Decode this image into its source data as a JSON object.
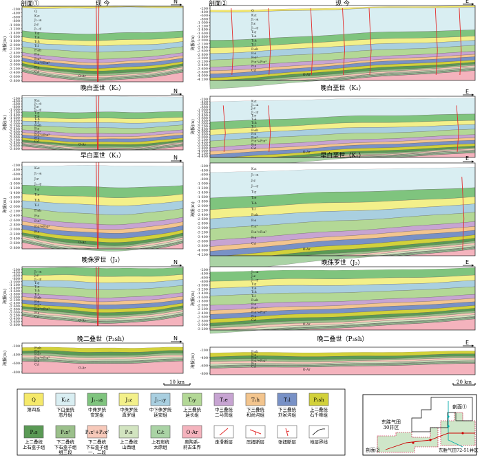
{
  "colors": {
    "Q": "#f5e96a",
    "K1z": "#d9eef2",
    "J23a": "#7fc47e",
    "J2z": "#f3f08a",
    "J12y": "#a9cfe0",
    "T3y": "#b3d896",
    "T2e": "#c7a4d2",
    "T1h": "#f3c58e",
    "T1l": "#7891c6",
    "P3sh": "#d2d13a",
    "P2s": "#5a9a55",
    "P2x3": "#9bc08b",
    "P2x12": "#f7c9ba",
    "P1s": "#d2e4c0",
    "C2t": "#aad3a5",
    "OAr": "#f4b3bd",
    "fault": "#e22b2b"
  },
  "panels_left": [
    {
      "title": "现 今",
      "label1": "剖面①",
      "dir": "N",
      "y_ticks": [
        "-200",
        "-400",
        "-600",
        "-800",
        "-1 000",
        "-1 200",
        "-1 400",
        "-1 600",
        "-1 800",
        "-2 000",
        "-2 200",
        "-2 400",
        "-2 600",
        "-2 800",
        "-3 000",
        "-3 200",
        "-3 400",
        "-3 600",
        "-3 800"
      ],
      "unit_labels": [
        "Q",
        "K₁z",
        "J₂₋₃a",
        "J₂z",
        "J₁₋₂y",
        "T₃y",
        "T₂e",
        "T₁h",
        "T₁l",
        "P₃sh",
        "P₂s",
        "P₂x³",
        "P₂x¹+P₂x²",
        "P₁s",
        "C₂t",
        "O-Ar"
      ]
    },
    {
      "title": "晚白垩世（K₂）",
      "dir": "N",
      "y_ticks": [
        "-200",
        "-400",
        "-600",
        "-800",
        "-1 000",
        "-1 200",
        "-1 400",
        "-1 600",
        "-1 800",
        "-2 000",
        "-2 200",
        "-2 400",
        "-2 600",
        "-2 800",
        "-3 000",
        "-3 200",
        "-3 400",
        "-3 600",
        "-3 800"
      ],
      "unit_labels": [
        "K₁z",
        "J₂₋₃a",
        "J₂z",
        "J₁₋₂y",
        "T₃y",
        "T₂e",
        "T₁h",
        "T₁l",
        "P₃sh",
        "P₂s",
        "P₂x³",
        "P₂x¹+P₂x²",
        "P₁s",
        "C₂t",
        "O-Ar"
      ]
    },
    {
      "title": "早白垩世（K₁）",
      "dir": "N",
      "y_ticks": [
        "-200",
        "-400",
        "-600",
        "-800",
        "-1 000",
        "-1 200",
        "-1 400",
        "-1 600",
        "-1 800",
        "-2 000",
        "-2 200",
        "-2 400",
        "-2 600",
        "-2 800",
        "-3 000",
        "-3 200",
        "-3 400",
        "-3 600",
        "-3 800"
      ],
      "unit_labels": [
        "K₁z",
        "J₂₋₃a",
        "J₂z",
        "J₁₋₂y",
        "T₃y",
        "T₂e",
        "T₁h",
        "T₁l",
        "P₃sh",
        "P₂s",
        "P₂x³",
        "P₂x¹+P₂x²",
        "P₁s",
        "C₂t",
        "O-Ar"
      ]
    },
    {
      "title": "晚侏罗世（J₃）",
      "dir": "N",
      "y_ticks": [
        "-200",
        "-400",
        "-600",
        "-800",
        "-1 000",
        "-1 200",
        "-1 400",
        "-1 600",
        "-1 800",
        "-2 000",
        "-2 200",
        "-2 400",
        "-2 600",
        "-2 800",
        "-3 000",
        "-3 200",
        "-3 400",
        "-3 600",
        "-3 800"
      ],
      "unit_labels": [
        "J₂₋₃a",
        "J₂z",
        "J₁₋₂y",
        "T₃y",
        "T₂e",
        "T₁h",
        "T₁l",
        "P₃sh",
        "P₂s",
        "P₂x³",
        "P₂x¹+P₂x²",
        "P₁s",
        "C₂t",
        "O-Ar"
      ]
    },
    {
      "title": "晚二叠世（P₃sh）",
      "dir": "N",
      "y_ticks": [
        "-200",
        "-400",
        "-600",
        "-800"
      ],
      "unit_labels": [
        "P₃sh",
        "P₂s",
        "P₂x³",
        "P₂x¹+P₂x²",
        "P₁s",
        "C₂t",
        "O-Ar"
      ]
    }
  ],
  "panels_right": [
    {
      "title": "现 今",
      "label1": "剖面②",
      "dir": "E",
      "y_ticks": [
        "-200",
        "-400",
        "-600",
        "-800",
        "-1 000",
        "-1 200",
        "-1 400",
        "-1 600",
        "-1 800",
        "-2 000",
        "-2 200",
        "-2 400",
        "-2 600",
        "-2 800",
        "-3 000",
        "-3 200",
        "-3 400",
        "-3 600",
        "-3 800",
        "-4 000",
        "-4 200"
      ],
      "unit_labels": [
        "Q",
        "K₁z",
        "J₂₋₃a",
        "J₂z",
        "J₁₋₂y",
        "T₃y",
        "T₂e",
        "T₁h",
        "T₁l",
        "P₃sh",
        "P₂s",
        "P₂x³",
        "P₂x¹+P₂x²",
        "P₁s",
        "C₂t",
        "O-Ar"
      ]
    },
    {
      "title": "晚白垩世（K₂）",
      "dir": "E",
      "y_ticks": [
        "-200",
        "-400",
        "-600",
        "-800",
        "-1 000",
        "-1 200",
        "-1 400",
        "-1 600",
        "-1 800",
        "-2 000",
        "-2 200",
        "-2 400",
        "-2 600",
        "-2 800",
        "-3 000",
        "-3 200",
        "-3 400",
        "-3 600",
        "-3 800",
        "-4 000",
        "-4 200",
        "-4 400"
      ],
      "unit_labels": [
        "K₁z",
        "J₂₋₃a",
        "J₂z",
        "J₁₋₂y",
        "T₃y",
        "T₂e",
        "T₁h",
        "T₁l",
        "P₃sh",
        "P₂s",
        "P₂x³",
        "P₂x¹+P₂x²",
        "P₁s",
        "C₂t",
        "O-Ar"
      ]
    },
    {
      "title": "早白垩世（K₁）",
      "dir": "E",
      "y_ticks": [
        "-200",
        "-400",
        "-600",
        "-800",
        "-1 000",
        "-1 200",
        "-1 400",
        "-1 600",
        "-1 800",
        "-2 000",
        "-2 200",
        "-2 400",
        "-2 600",
        "-2 800",
        "-3 000",
        "-3 200",
        "-3 400",
        "-3 600",
        "-3 800",
        "-4 000",
        "-4 200"
      ],
      "unit_labels": [
        "K₁z",
        "J₂₋₃a",
        "J₂z",
        "J₁₋₂y",
        "T₃y",
        "T₂e",
        "T₁h",
        "T₁l",
        "P₃sh",
        "P₂s",
        "P₂x³",
        "P₂x¹+P₂x²",
        "P₁s",
        "C₂t",
        "O-Ar"
      ]
    },
    {
      "title": "晚侏罗世（J₃）",
      "dir": "E",
      "y_ticks": [
        "-200",
        "-400",
        "-600",
        "-800",
        "-1 000",
        "-1 200",
        "-1 400",
        "-1 600",
        "-1 800",
        "-2 000",
        "-2 200",
        "-2 400",
        "-2 600",
        "-2 800",
        "-3 000",
        "-3 200"
      ],
      "unit_labels": [
        "J₂₋₃a",
        "J₂z",
        "J₁₋₂y",
        "T₃y",
        "T₂e",
        "T₁h",
        "T₁l",
        "P₃sh",
        "P₂s",
        "P₂x³",
        "P₂x¹+P₂x²",
        "P₁s",
        "C₂t",
        "O-Ar"
      ]
    },
    {
      "title": "晚二叠世（P₃sh）",
      "dir": "E",
      "y_ticks": [
        "-200",
        "-400",
        "-600",
        "-800"
      ],
      "unit_labels": [
        "P₃sh",
        "P₂s",
        "P₂x³",
        "P₂x¹+P₂x²",
        "P₁s",
        "C₂t",
        "O-Ar"
      ]
    }
  ],
  "y_axis_label": "海拔(m)",
  "scale_left": "10 km",
  "scale_right": "20 km",
  "legend": [
    {
      "code": "Q",
      "name": "第四系",
      "key": "Q"
    },
    {
      "code": "K₁z",
      "name": "下白垩统|志丹组",
      "key": "K1z"
    },
    {
      "code": "J₂₋₃a",
      "name": "中侏罗统|安定组",
      "key": "J23a"
    },
    {
      "code": "J₂z",
      "name": "中侏罗统|直罗组",
      "key": "J2z"
    },
    {
      "code": "J₁₋₂y",
      "name": "中下侏罗统|延安组",
      "key": "J12y"
    },
    {
      "code": "T₃y",
      "name": "上三叠统|延长组",
      "key": "T3y"
    },
    {
      "code": "T₂e",
      "name": "中三叠统|二马营组",
      "key": "T2e"
    },
    {
      "code": "T₁h",
      "name": "下三叠统|和尚沟组",
      "key": "T1h"
    },
    {
      "code": "T₁l",
      "name": "下三叠统|刘家沟组",
      "key": "T1l"
    },
    {
      "code": "P₃sh",
      "name": "上二叠统|石千峰组",
      "key": "P3sh"
    },
    {
      "code": "P₂s",
      "name": "上二叠统|上石盒子组",
      "key": "P2s"
    },
    {
      "code": "P₂x³",
      "name": "下二叠统|下石盒子组|组三段",
      "key": "P2x3"
    },
    {
      "code": "P₂x¹+P₂x²",
      "name": "下二叠统|下石盒子组|一、二段",
      "key": "P2x12"
    },
    {
      "code": "P₁s",
      "name": "上二叠统|山西组",
      "key": "P1s"
    },
    {
      "code": "C₂t",
      "name": "上石炭统|太原组",
      "key": "C2t"
    },
    {
      "code": "O-Ar",
      "name": "奥陶系-|前古生界",
      "key": "OAr"
    },
    {
      "code": "",
      "name": "走滑断层",
      "key": "sym-strike"
    },
    {
      "code": "",
      "name": "压扭断层",
      "key": "sym-comp"
    },
    {
      "code": "",
      "name": "张扭断层",
      "key": "sym-tens"
    },
    {
      "code": "",
      "name": "地层界线",
      "key": "sym-bound"
    }
  ],
  "inset": {
    "label_section1": "剖面①",
    "label_section2": "剖面②",
    "label_well30": "东胜气田|30井区",
    "label_well72": "东胜气田72-51井区"
  }
}
